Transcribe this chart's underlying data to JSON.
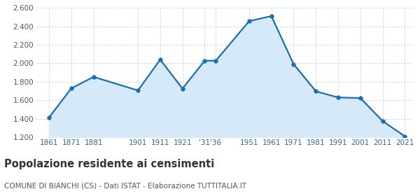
{
  "years": [
    1861,
    1871,
    1881,
    1901,
    1911,
    1921,
    1931,
    1936,
    1951,
    1961,
    1971,
    1981,
    1991,
    2001,
    2011,
    2021
  ],
  "values": [
    1413,
    1728,
    1853,
    1706,
    2040,
    1726,
    2028,
    2028,
    2456,
    2511,
    1990,
    1697,
    1630,
    1624,
    1375,
    1210
  ],
  "x_tick_positions": [
    1861,
    1871,
    1881,
    1901,
    1911,
    1921,
    1931,
    1936,
    1951,
    1961,
    1971,
    1981,
    1991,
    2001,
    2011,
    2021
  ],
  "x_tick_labels": [
    "1861",
    "1871",
    "1881",
    "1901",
    "1911",
    "1921",
    "'31",
    "'36",
    "1951",
    "1961",
    "1971",
    "1981",
    "1991",
    "2001",
    "2011",
    "2021"
  ],
  "line_color": "#1a6faf",
  "fill_color": "#d6e9f8",
  "marker_color": "#1a6faf",
  "background_color": "#ffffff",
  "grid_color": "#c8d8e8",
  "ylim": [
    1200,
    2600
  ],
  "xlim_min": 1855,
  "xlim_max": 2025,
  "yticks": [
    1200,
    1400,
    1600,
    1800,
    2000,
    2200,
    2400,
    2600
  ],
  "title": "Popolazione residente ai censimenti",
  "subtitle": "COMUNE DI BIANCHI (CS) - Dati ISTAT - Elaborazione TUTTITALIA.IT",
  "title_fontsize": 10.5,
  "subtitle_fontsize": 7.5,
  "tick_fontsize": 7.5,
  "line_width": 1.6,
  "marker_size": 4
}
